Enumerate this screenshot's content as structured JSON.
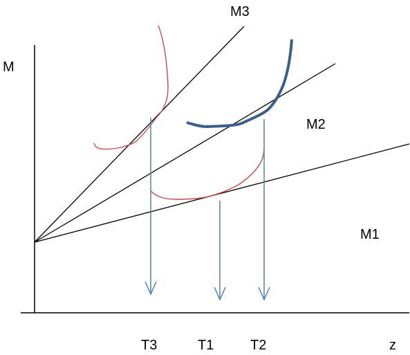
{
  "labels": {
    "y_axis": "M",
    "x_axis": "z",
    "line_m1": "M1",
    "line_m2": "M2",
    "line_m3": "M3",
    "tick_t3": "T3",
    "tick_t1": "T1",
    "tick_t2": "T2"
  },
  "colors": {
    "axes": "#000000",
    "lines": "#000000",
    "thin_curves": "#c0504d",
    "thick_curve": "#3a5f8a",
    "arrows": "#4f81bd"
  }
}
